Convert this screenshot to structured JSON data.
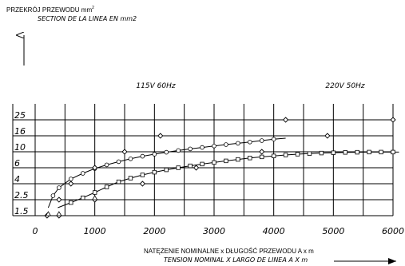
{
  "chart_data": {
    "type": "line",
    "title": "",
    "y_title_pl": "PRZEKRÓJ PRZEWODU mm",
    "y_title_pl_sup": "2",
    "y_title_es": "SECTION DE LA LINEA EN mm2",
    "x_title_pl": "NATĘŻENIE NOMINALNE x DŁUGOŚĆ PRZEWODU A x m",
    "x_title_es": "TENSION NOMINAL X LARGO DE LINEA A X m",
    "x_ticks": [
      "0",
      "1000",
      "2000",
      "3000",
      "4000",
      "5000",
      "6000"
    ],
    "x_tick_values": [
      0,
      1000,
      2000,
      3000,
      4000,
      5000,
      6000
    ],
    "xlim": [
      0,
      6000
    ],
    "y_categories": [
      "1.5",
      "2.5",
      "4",
      "6",
      "10",
      "16",
      "25"
    ],
    "grid": true,
    "series": [
      {
        "name": "115V 60Hz",
        "color": "#000000",
        "points": [
          [
            200,
            "1.5"
          ],
          [
            400,
            "2.5"
          ],
          [
            600,
            "4"
          ],
          [
            1000,
            "6"
          ],
          [
            1500,
            "10"
          ],
          [
            2100,
            "16"
          ],
          [
            4200,
            "25"
          ]
        ],
        "curve": [
          [
            220,
            1.5
          ],
          [
            300,
            2.25
          ],
          [
            400,
            2.75
          ],
          [
            600,
            3.3
          ],
          [
            800,
            3.65
          ],
          [
            1000,
            3.95
          ],
          [
            1200,
            4.18
          ],
          [
            1400,
            4.38
          ],
          [
            1600,
            4.56
          ],
          [
            1800,
            4.72
          ],
          [
            2000,
            4.85
          ],
          [
            2200,
            4.97
          ],
          [
            2400,
            5.08
          ],
          [
            2600,
            5.18
          ],
          [
            2800,
            5.27
          ],
          [
            3000,
            5.36
          ],
          [
            3200,
            5.45
          ],
          [
            3400,
            5.53
          ],
          [
            3600,
            5.61
          ],
          [
            3800,
            5.7
          ],
          [
            4000,
            5.79
          ],
          [
            4200,
            5.85
          ]
        ]
      },
      {
        "name": "220V 50Hz",
        "color": "#000000",
        "points": [
          [
            400,
            "1.5"
          ],
          [
            1000,
            "2.5"
          ],
          [
            1800,
            "4"
          ],
          [
            2700,
            "6"
          ],
          [
            3800,
            "10"
          ],
          [
            4900,
            "16"
          ],
          [
            6000,
            "25"
          ]
        ],
        "curve": [
          [
            380,
            1.5
          ],
          [
            600,
            1.82
          ],
          [
            800,
            2.12
          ],
          [
            1000,
            2.45
          ],
          [
            1200,
            2.8
          ],
          [
            1400,
            3.12
          ],
          [
            1600,
            3.35
          ],
          [
            1800,
            3.55
          ],
          [
            2000,
            3.72
          ],
          [
            2200,
            3.87
          ],
          [
            2400,
            4.0
          ],
          [
            2600,
            4.12
          ],
          [
            2800,
            4.23
          ],
          [
            3000,
            4.33
          ],
          [
            3200,
            4.43
          ],
          [
            3400,
            4.52
          ],
          [
            3600,
            4.61
          ],
          [
            3800,
            4.68
          ],
          [
            4000,
            4.74
          ],
          [
            4200,
            4.8
          ],
          [
            4400,
            4.85
          ],
          [
            4600,
            4.89
          ],
          [
            4800,
            4.92
          ],
          [
            5000,
            4.94
          ],
          [
            5200,
            4.96
          ],
          [
            5400,
            4.97
          ],
          [
            5600,
            4.98
          ],
          [
            5800,
            4.98
          ],
          [
            6000,
            4.98
          ],
          [
            6100,
            4.98
          ]
        ]
      }
    ],
    "legend": "annotations above plot"
  }
}
